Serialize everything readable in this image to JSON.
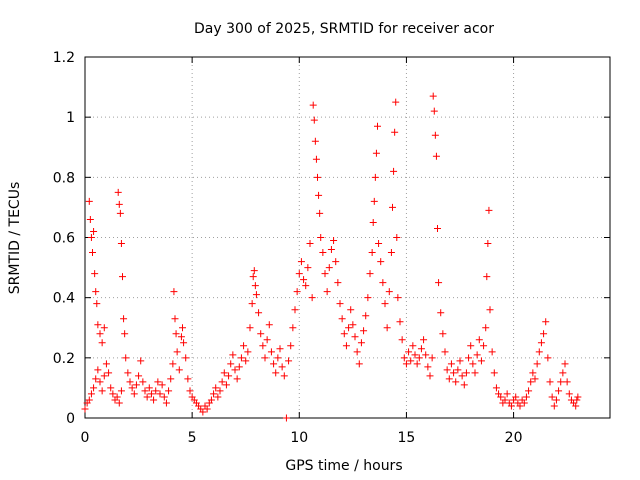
{
  "chart_data": {
    "type": "scatter",
    "title": "Day 300 of 2025, SRMTID for receiver acor",
    "xlabel": "GPS time / hours",
    "ylabel": "SRMTID / TECUs",
    "xlim": [
      0,
      24.5
    ],
    "ylim": [
      0,
      1.2
    ],
    "x_ticks": [
      0,
      5,
      10,
      15,
      20
    ],
    "x_tick_labels": [
      "0",
      "5",
      "10",
      "15",
      "20"
    ],
    "y_ticks": [
      0,
      0.2,
      0.4,
      0.6,
      0.8,
      1.0,
      1.2
    ],
    "y_tick_labels": [
      "0",
      "0.2",
      "0.4",
      "0.6",
      "0.8",
      "1",
      "1.2"
    ],
    "grid": true,
    "marker": "plus",
    "color": "#ff0000",
    "series": [
      {
        "name": "SRMTID",
        "points": [
          [
            0.0,
            0.03
          ],
          [
            0.1,
            0.05
          ],
          [
            0.2,
            0.06
          ],
          [
            0.3,
            0.08
          ],
          [
            0.4,
            0.1
          ],
          [
            0.5,
            0.13
          ],
          [
            0.6,
            0.16
          ],
          [
            0.7,
            0.12
          ],
          [
            0.8,
            0.09
          ],
          [
            0.9,
            0.14
          ],
          [
            0.2,
            0.72
          ],
          [
            0.25,
            0.66
          ],
          [
            0.3,
            0.6
          ],
          [
            0.35,
            0.55
          ],
          [
            0.4,
            0.62
          ],
          [
            0.45,
            0.48
          ],
          [
            0.5,
            0.42
          ],
          [
            0.55,
            0.38
          ],
          [
            0.6,
            0.31
          ],
          [
            0.7,
            0.28
          ],
          [
            0.8,
            0.25
          ],
          [
            0.9,
            0.3
          ],
          [
            1.0,
            0.18
          ],
          [
            1.1,
            0.15
          ],
          [
            1.2,
            0.1
          ],
          [
            1.3,
            0.08
          ],
          [
            1.4,
            0.06
          ],
          [
            1.5,
            0.07
          ],
          [
            1.6,
            0.05
          ],
          [
            1.7,
            0.09
          ],
          [
            1.55,
            0.75
          ],
          [
            1.6,
            0.71
          ],
          [
            1.65,
            0.68
          ],
          [
            1.7,
            0.58
          ],
          [
            1.75,
            0.47
          ],
          [
            1.8,
            0.33
          ],
          [
            1.85,
            0.28
          ],
          [
            1.9,
            0.2
          ],
          [
            2.0,
            0.15
          ],
          [
            2.1,
            0.12
          ],
          [
            2.2,
            0.1
          ],
          [
            2.3,
            0.08
          ],
          [
            2.4,
            0.11
          ],
          [
            2.5,
            0.14
          ],
          [
            2.6,
            0.19
          ],
          [
            2.7,
            0.12
          ],
          [
            2.8,
            0.09
          ],
          [
            2.9,
            0.07
          ],
          [
            3.0,
            0.1
          ],
          [
            3.1,
            0.08
          ],
          [
            3.2,
            0.06
          ],
          [
            3.3,
            0.09
          ],
          [
            3.4,
            0.12
          ],
          [
            3.5,
            0.08
          ],
          [
            3.6,
            0.11
          ],
          [
            3.7,
            0.07
          ],
          [
            3.8,
            0.05
          ],
          [
            3.9,
            0.09
          ],
          [
            4.0,
            0.13
          ],
          [
            4.1,
            0.18
          ],
          [
            4.15,
            0.42
          ],
          [
            4.2,
            0.33
          ],
          [
            4.25,
            0.28
          ],
          [
            4.3,
            0.22
          ],
          [
            4.4,
            0.16
          ],
          [
            4.5,
            0.27
          ],
          [
            4.55,
            0.3
          ],
          [
            4.6,
            0.25
          ],
          [
            4.7,
            0.2
          ],
          [
            4.8,
            0.13
          ],
          [
            4.9,
            0.09
          ],
          [
            5.0,
            0.07
          ],
          [
            5.1,
            0.06
          ],
          [
            5.2,
            0.05
          ],
          [
            5.3,
            0.04
          ],
          [
            5.4,
            0.03
          ],
          [
            5.5,
            0.02
          ],
          [
            5.6,
            0.04
          ],
          [
            5.7,
            0.03
          ],
          [
            5.8,
            0.05
          ],
          [
            5.9,
            0.06
          ],
          [
            6.0,
            0.08
          ],
          [
            6.1,
            0.1
          ],
          [
            6.2,
            0.07
          ],
          [
            6.3,
            0.09
          ],
          [
            6.4,
            0.12
          ],
          [
            6.5,
            0.15
          ],
          [
            6.6,
            0.11
          ],
          [
            6.7,
            0.14
          ],
          [
            6.8,
            0.18
          ],
          [
            6.9,
            0.21
          ],
          [
            7.0,
            0.16
          ],
          [
            7.1,
            0.13
          ],
          [
            7.2,
            0.17
          ],
          [
            7.3,
            0.2
          ],
          [
            7.4,
            0.24
          ],
          [
            7.5,
            0.19
          ],
          [
            7.6,
            0.22
          ],
          [
            7.7,
            0.3
          ],
          [
            7.8,
            0.38
          ],
          [
            7.85,
            0.47
          ],
          [
            7.9,
            0.49
          ],
          [
            7.95,
            0.44
          ],
          [
            8.0,
            0.41
          ],
          [
            8.1,
            0.35
          ],
          [
            8.2,
            0.28
          ],
          [
            8.3,
            0.24
          ],
          [
            8.4,
            0.2
          ],
          [
            8.5,
            0.26
          ],
          [
            8.6,
            0.31
          ],
          [
            8.7,
            0.22
          ],
          [
            8.8,
            0.18
          ],
          [
            8.9,
            0.15
          ],
          [
            9.0,
            0.2
          ],
          [
            9.1,
            0.23
          ],
          [
            9.2,
            0.17
          ],
          [
            9.3,
            0.14
          ],
          [
            9.4,
            0.0
          ],
          [
            9.5,
            0.19
          ],
          [
            9.6,
            0.24
          ],
          [
            9.7,
            0.3
          ],
          [
            9.8,
            0.36
          ],
          [
            9.9,
            0.42
          ],
          [
            10.0,
            0.48
          ],
          [
            10.1,
            0.52
          ],
          [
            10.2,
            0.46
          ],
          [
            10.3,
            0.44
          ],
          [
            10.4,
            0.5
          ],
          [
            10.5,
            0.58
          ],
          [
            10.6,
            0.4
          ],
          [
            10.65,
            1.04
          ],
          [
            10.7,
            0.99
          ],
          [
            10.75,
            0.92
          ],
          [
            10.8,
            0.86
          ],
          [
            10.85,
            0.8
          ],
          [
            10.9,
            0.74
          ],
          [
            10.95,
            0.68
          ],
          [
            11.0,
            0.6
          ],
          [
            11.1,
            0.55
          ],
          [
            11.2,
            0.48
          ],
          [
            11.3,
            0.42
          ],
          [
            11.4,
            0.5
          ],
          [
            11.5,
            0.56
          ],
          [
            11.6,
            0.59
          ],
          [
            11.7,
            0.52
          ],
          [
            11.8,
            0.45
          ],
          [
            11.9,
            0.38
          ],
          [
            12.0,
            0.33
          ],
          [
            12.1,
            0.28
          ],
          [
            12.2,
            0.24
          ],
          [
            12.3,
            0.3
          ],
          [
            12.4,
            0.36
          ],
          [
            12.5,
            0.31
          ],
          [
            12.6,
            0.27
          ],
          [
            12.7,
            0.22
          ],
          [
            12.8,
            0.18
          ],
          [
            12.9,
            0.25
          ],
          [
            13.0,
            0.29
          ],
          [
            13.1,
            0.34
          ],
          [
            13.2,
            0.4
          ],
          [
            13.3,
            0.48
          ],
          [
            13.4,
            0.55
          ],
          [
            13.45,
            0.65
          ],
          [
            13.5,
            0.72
          ],
          [
            13.55,
            0.8
          ],
          [
            13.6,
            0.88
          ],
          [
            13.65,
            0.97
          ],
          [
            13.7,
            0.58
          ],
          [
            13.8,
            0.52
          ],
          [
            13.9,
            0.45
          ],
          [
            14.0,
            0.38
          ],
          [
            14.1,
            0.3
          ],
          [
            14.2,
            0.42
          ],
          [
            14.3,
            0.55
          ],
          [
            14.35,
            0.7
          ],
          [
            14.4,
            0.82
          ],
          [
            14.45,
            0.95
          ],
          [
            14.5,
            1.05
          ],
          [
            14.55,
            0.6
          ],
          [
            14.6,
            0.4
          ],
          [
            14.7,
            0.32
          ],
          [
            14.8,
            0.26
          ],
          [
            14.9,
            0.2
          ],
          [
            15.0,
            0.18
          ],
          [
            15.1,
            0.22
          ],
          [
            15.2,
            0.19
          ],
          [
            15.3,
            0.24
          ],
          [
            15.4,
            0.21
          ],
          [
            15.5,
            0.18
          ],
          [
            15.6,
            0.2
          ],
          [
            15.7,
            0.23
          ],
          [
            15.8,
            0.26
          ],
          [
            15.9,
            0.21
          ],
          [
            16.0,
            0.17
          ],
          [
            16.1,
            0.14
          ],
          [
            16.2,
            0.2
          ],
          [
            16.25,
            1.07
          ],
          [
            16.3,
            1.02
          ],
          [
            16.35,
            0.94
          ],
          [
            16.4,
            0.87
          ],
          [
            16.45,
            0.63
          ],
          [
            16.5,
            0.45
          ],
          [
            16.6,
            0.35
          ],
          [
            16.7,
            0.28
          ],
          [
            16.8,
            0.22
          ],
          [
            16.9,
            0.16
          ],
          [
            17.0,
            0.13
          ],
          [
            17.1,
            0.18
          ],
          [
            17.2,
            0.15
          ],
          [
            17.3,
            0.12
          ],
          [
            17.4,
            0.16
          ],
          [
            17.5,
            0.19
          ],
          [
            17.6,
            0.14
          ],
          [
            17.7,
            0.11
          ],
          [
            17.8,
            0.15
          ],
          [
            17.9,
            0.2
          ],
          [
            18.0,
            0.24
          ],
          [
            18.1,
            0.18
          ],
          [
            18.2,
            0.15
          ],
          [
            18.3,
            0.21
          ],
          [
            18.4,
            0.26
          ],
          [
            18.5,
            0.19
          ],
          [
            18.6,
            0.24
          ],
          [
            18.7,
            0.3
          ],
          [
            18.75,
            0.47
          ],
          [
            18.8,
            0.58
          ],
          [
            18.85,
            0.69
          ],
          [
            18.9,
            0.36
          ],
          [
            19.0,
            0.22
          ],
          [
            19.1,
            0.15
          ],
          [
            19.2,
            0.1
          ],
          [
            19.3,
            0.08
          ],
          [
            19.4,
            0.07
          ],
          [
            19.5,
            0.05
          ],
          [
            19.6,
            0.06
          ],
          [
            19.7,
            0.08
          ],
          [
            19.8,
            0.05
          ],
          [
            19.9,
            0.04
          ],
          [
            20.0,
            0.06
          ],
          [
            20.1,
            0.07
          ],
          [
            20.2,
            0.05
          ],
          [
            20.3,
            0.04
          ],
          [
            20.4,
            0.06
          ],
          [
            20.5,
            0.05
          ],
          [
            20.6,
            0.07
          ],
          [
            20.7,
            0.09
          ],
          [
            20.8,
            0.12
          ],
          [
            20.9,
            0.15
          ],
          [
            21.0,
            0.13
          ],
          [
            21.1,
            0.18
          ],
          [
            21.2,
            0.22
          ],
          [
            21.3,
            0.25
          ],
          [
            21.4,
            0.28
          ],
          [
            21.5,
            0.32
          ],
          [
            21.6,
            0.2
          ],
          [
            21.7,
            0.12
          ],
          [
            21.8,
            0.07
          ],
          [
            21.9,
            0.04
          ],
          [
            22.0,
            0.06
          ],
          [
            22.1,
            0.09
          ],
          [
            22.2,
            0.12
          ],
          [
            22.3,
            0.15
          ],
          [
            22.4,
            0.18
          ],
          [
            22.5,
            0.12
          ],
          [
            22.6,
            0.08
          ],
          [
            22.7,
            0.06
          ],
          [
            22.8,
            0.05
          ],
          [
            22.9,
            0.04
          ],
          [
            22.95,
            0.06
          ],
          [
            23.0,
            0.07
          ]
        ]
      }
    ]
  }
}
